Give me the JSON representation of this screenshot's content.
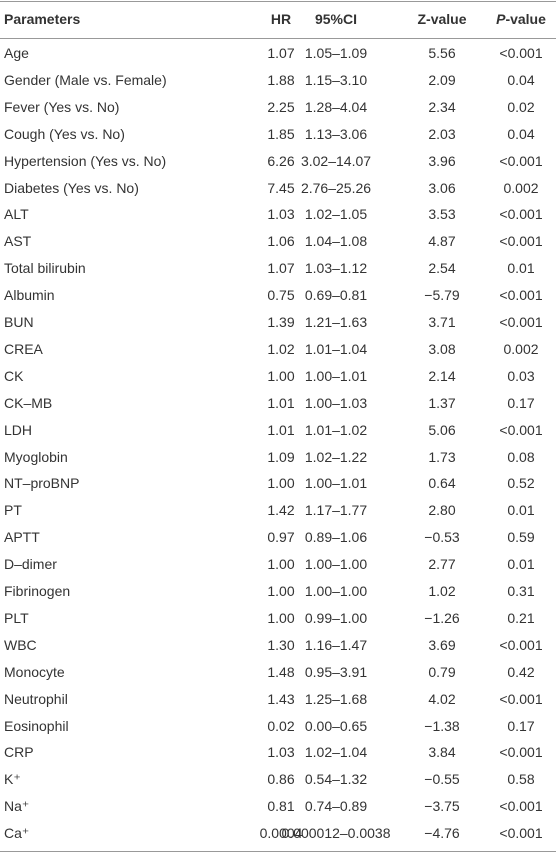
{
  "table": {
    "header": [
      "Parameters",
      "HR",
      "95%CI",
      "Z-value",
      [
        "P",
        "-value"
      ]
    ],
    "rows": [
      [
        "Age",
        "1.07",
        "1.05–1.09",
        "5.56",
        "<0.001"
      ],
      [
        "Gender (Male vs. Female)",
        "1.88",
        "1.15–3.10",
        "2.09",
        "0.04"
      ],
      [
        "Fever (Yes vs. No)",
        "2.25",
        "1.28–4.04",
        "2.34",
        "0.02"
      ],
      [
        "Cough (Yes vs. No)",
        "1.85",
        "1.13–3.06",
        "2.03",
        "0.04"
      ],
      [
        "Hypertension (Yes vs. No)",
        "6.26",
        "3.02–14.07",
        "3.96",
        "<0.001"
      ],
      [
        "Diabetes (Yes vs. No)",
        "7.45",
        "2.76–25.26",
        "3.06",
        "0.002"
      ],
      [
        "ALT",
        "1.03",
        "1.02–1.05",
        "3.53",
        "<0.001"
      ],
      [
        "AST",
        "1.06",
        "1.04–1.08",
        "4.87",
        "<0.001"
      ],
      [
        "Total bilirubin",
        "1.07",
        "1.03–1.12",
        "2.54",
        "0.01"
      ],
      [
        "Albumin",
        "0.75",
        "0.69–0.81",
        "−5.79",
        "<0.001"
      ],
      [
        "BUN",
        "1.39",
        "1.21–1.63",
        "3.71",
        "<0.001"
      ],
      [
        "CREA",
        "1.02",
        "1.01–1.04",
        "3.08",
        "0.002"
      ],
      [
        "CK",
        "1.00",
        "1.00–1.01",
        "2.14",
        "0.03"
      ],
      [
        "CK–MB",
        "1.01",
        "1.00–1.03",
        "1.37",
        "0.17"
      ],
      [
        "LDH",
        "1.01",
        "1.01–1.02",
        "5.06",
        "<0.001"
      ],
      [
        "Myoglobin",
        "1.09",
        "1.02–1.22",
        "1.73",
        "0.08"
      ],
      [
        "NT–proBNP",
        "1.00",
        "1.00–1.01",
        "0.64",
        "0.52"
      ],
      [
        "PT",
        "1.42",
        "1.17–1.77",
        "2.80",
        "0.01"
      ],
      [
        "APTT",
        "0.97",
        "0.89–1.06",
        "−0.53",
        "0.59"
      ],
      [
        "D–dimer",
        "1.00",
        "1.00–1.00",
        "2.77",
        "0.01"
      ],
      [
        "Fibrinogen",
        "1.00",
        "1.00–1.00",
        "1.02",
        "0.31"
      ],
      [
        "PLT",
        "1.00",
        "0.99–1.00",
        "−1.26",
        "0.21"
      ],
      [
        "WBC",
        "1.30",
        "1.16–1.47",
        "3.69",
        "<0.001"
      ],
      [
        "Monocyte",
        "1.48",
        "0.95–3.91",
        "0.79",
        "0.42"
      ],
      [
        "Neutrophil",
        "1.43",
        "1.25–1.68",
        "4.02",
        "<0.001"
      ],
      [
        "Eosinophil",
        "0.02",
        "0.00–0.65",
        "−1.38",
        "0.17"
      ],
      [
        "CRP",
        "1.03",
        "1.02–1.04",
        "3.84",
        "<0.001"
      ],
      [
        "K⁺",
        "0.86",
        "0.54–1.32",
        "−0.55",
        "0.58"
      ],
      [
        "Na⁺",
        "0.81",
        "0.74–0.89",
        "−3.75",
        "<0.001"
      ],
      [
        "Ca⁺",
        "0.0004",
        "0.000012–0.0038",
        "−4.76",
        "<0.001"
      ]
    ]
  }
}
